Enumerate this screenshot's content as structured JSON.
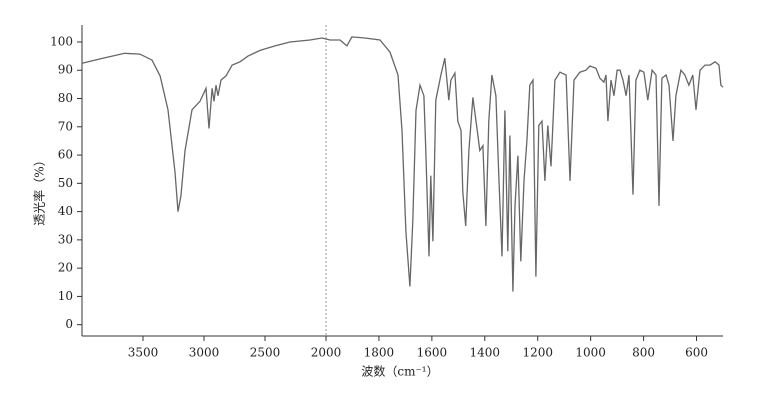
{
  "chart_data": {
    "type": "line",
    "x_label": "波数（cm⁻¹）",
    "y_label": "透光率（%）",
    "x_break": 2000,
    "xlim": [
      4000,
      500
    ],
    "xticks": [
      3500,
      3000,
      2500,
      2000,
      1800,
      1600,
      1400,
      1200,
      1000,
      800,
      600
    ],
    "ylim": [
      -4,
      106
    ],
    "yticks": [
      0,
      10,
      20,
      30,
      40,
      50,
      60,
      70,
      80,
      90,
      100
    ],
    "grid": false,
    "series": [
      {
        "color": "#666666",
        "x": [
          4000,
          3852,
          3650,
          3525,
          3426,
          3360,
          3295,
          3238,
          3213,
          3189,
          3156,
          3098,
          3033,
          2984,
          2959,
          2934,
          2918,
          2902,
          2885,
          2861,
          2820,
          2770,
          2705,
          2639,
          2541,
          2418,
          2295,
          2131,
          2033,
          1985,
          1947,
          1921,
          1902,
          1853,
          1796,
          1758,
          1728,
          1713,
          1698,
          1683,
          1672,
          1660,
          1645,
          1630,
          1623,
          1611,
          1604,
          1596,
          1585,
          1566,
          1551,
          1536,
          1528,
          1513,
          1502,
          1490,
          1483,
          1472,
          1460,
          1445,
          1426,
          1419,
          1407,
          1396,
          1385,
          1373,
          1358,
          1347,
          1335,
          1324,
          1313,
          1305,
          1294,
          1286,
          1275,
          1264,
          1252,
          1241,
          1230,
          1218,
          1207,
          1196,
          1184,
          1173,
          1162,
          1150,
          1135,
          1116,
          1093,
          1078,
          1063,
          1041,
          1018,
          1003,
          980,
          965,
          950,
          942,
          935,
          923,
          912,
          900,
          889,
          878,
          866,
          855,
          840,
          829,
          814,
          799,
          784,
          768,
          753,
          742,
          731,
          715,
          704,
          689,
          678,
          659,
          644,
          629,
          614,
          602,
          587,
          568,
          549,
          530,
          515,
          508,
          500
        ],
        "values": [
          92.5,
          94,
          96,
          95.7,
          93.6,
          88,
          76,
          54,
          40,
          45.5,
          61.5,
          76,
          79,
          83.6,
          69.4,
          83.6,
          79,
          84.7,
          81,
          86.5,
          88,
          91.8,
          93,
          95,
          97,
          98.6,
          100,
          100.7,
          101.4,
          100.7,
          100.7,
          98.6,
          101.8,
          101.4,
          100.7,
          96.4,
          88.3,
          68.7,
          33,
          13.5,
          36.7,
          75.8,
          84.7,
          81,
          61.6,
          24.2,
          52.7,
          29.5,
          79.4,
          88.3,
          94.3,
          79.4,
          86.5,
          89,
          72,
          68.7,
          47,
          34.9,
          61.6,
          80.4,
          66.9,
          61.6,
          63.3,
          34.9,
          72,
          88.3,
          81,
          52.7,
          24.2,
          75.8,
          26,
          66.9,
          11.7,
          42,
          59.8,
          22.4,
          50.9,
          65,
          84.7,
          86.5,
          17,
          70.5,
          72,
          50.9,
          70.5,
          56,
          86.5,
          89.3,
          88.3,
          50.9,
          86.5,
          89.3,
          90,
          91.5,
          90.7,
          87.2,
          85.8,
          88.3,
          72,
          86.5,
          81,
          90,
          90,
          86.5,
          81,
          88.3,
          46,
          86.5,
          90,
          89.3,
          79.4,
          90,
          88.3,
          42,
          87.2,
          88.3,
          84.7,
          65,
          81,
          90,
          88.3,
          84.7,
          88.3,
          76,
          90,
          91.8,
          91.8,
          93,
          91.8,
          84.7,
          84
        ]
      }
    ]
  }
}
